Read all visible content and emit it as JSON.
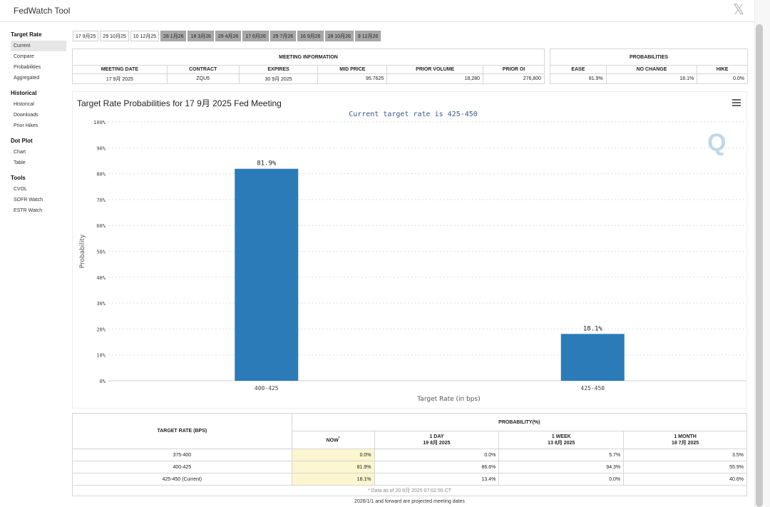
{
  "app": {
    "title": "FedWatch Tool",
    "close_glyph": "𝕏"
  },
  "sidebar": {
    "sections": [
      {
        "heading": "Target Rate",
        "items": [
          {
            "label": "Current",
            "active": true
          },
          {
            "label": "Compare"
          },
          {
            "label": "Probabilities"
          },
          {
            "label": "Aggregated"
          }
        ]
      },
      {
        "heading": "Historical",
        "items": [
          {
            "label": "Historical"
          },
          {
            "label": "Downloads"
          },
          {
            "label": "Prior Hikes"
          }
        ]
      },
      {
        "heading": "Dot Plot",
        "items": [
          {
            "label": "Chart"
          },
          {
            "label": "Table"
          }
        ]
      },
      {
        "heading": "Tools",
        "items": [
          {
            "label": "CVOL"
          },
          {
            "label": "SOFR Watch"
          },
          {
            "label": "ESTR Watch"
          }
        ]
      }
    ]
  },
  "tabs": [
    {
      "label": "17 9月25",
      "style": "white"
    },
    {
      "label": "29 10月25",
      "style": "white"
    },
    {
      "label": "10 12月25",
      "style": "white"
    },
    {
      "label": "28 1月26",
      "style": "gray"
    },
    {
      "label": "18 3月26",
      "style": "gray"
    },
    {
      "label": "29 4月26",
      "style": "gray"
    },
    {
      "label": "17 6月26",
      "style": "gray"
    },
    {
      "label": "29 7月26",
      "style": "gray"
    },
    {
      "label": "16 9月26",
      "style": "gray"
    },
    {
      "label": "28 10月26",
      "style": "gray"
    },
    {
      "label": "9 12月26",
      "style": "gray"
    }
  ],
  "meeting_info": {
    "heading": "MEETING INFORMATION",
    "columns": [
      "MEETING DATE",
      "CONTRACT",
      "EXPIRES",
      "MID PRICE",
      "PRIOR VOLUME",
      "PRIOR OI"
    ],
    "row": [
      "17 9月 2025",
      "ZQU5",
      "30 9月 2025",
      "95.7625",
      "18,280",
      "276,800"
    ]
  },
  "probabilities": {
    "heading": "PROBABILITIES",
    "columns": [
      "EASE",
      "NO CHANGE",
      "HIKE"
    ],
    "row": [
      "81.9%",
      "18.1%",
      "0.0%"
    ]
  },
  "chart": {
    "title": "Target Rate Probabilities for 17 9月 2025 Fed Meeting",
    "menu_icon": "hamburger-menu-icon",
    "logo": "Q",
    "bar_color": "#2b7bb9"
  },
  "chart_data": {
    "type": "bar",
    "title": "Target Rate Probabilities for 17 9月 2025 Fed Meeting",
    "subtitle": "Current target rate is 425-450",
    "categories": [
      "400-425",
      "425-450"
    ],
    "values": [
      81.9,
      18.1
    ],
    "data_labels": [
      "81.9%",
      "18.1%"
    ],
    "xlabel": "Target Rate (in bps)",
    "ylabel": "Probability",
    "ylim": [
      0,
      100
    ],
    "yticks": [
      "0%",
      "10%",
      "20%",
      "30%",
      "40%",
      "50%",
      "60%",
      "70%",
      "80%",
      "90%",
      "100%"
    ],
    "grid": true,
    "legend": "none"
  },
  "bottom_table": {
    "rate_header": "TARGET RATE (BPS)",
    "prob_header": "PROBABILITY(%)",
    "now_label": "NOW",
    "now_marker": "*",
    "periods": [
      {
        "label": "1 DAY",
        "date": "19 8月 2025"
      },
      {
        "label": "1 WEEK",
        "date": "13 8月 2025"
      },
      {
        "label": "1 MONTH",
        "date": "18 7月 2025"
      }
    ],
    "rows": [
      {
        "rate": "375-400",
        "now": "0.0%",
        "day": "0.0%",
        "week": "5.7%",
        "month": "3.5%"
      },
      {
        "rate": "400-425",
        "now": "81.9%",
        "day": "86.6%",
        "week": "94.3%",
        "month": "55.9%"
      },
      {
        "rate": "425-450 (Current)",
        "now": "18.1%",
        "day": "13.4%",
        "week": "0.0%",
        "month": "40.6%"
      }
    ],
    "note": "* Data as of 20 8月 2025 07:02:55 CT"
  },
  "footnote": "2026/1/1 and forward are projected meeting dates"
}
